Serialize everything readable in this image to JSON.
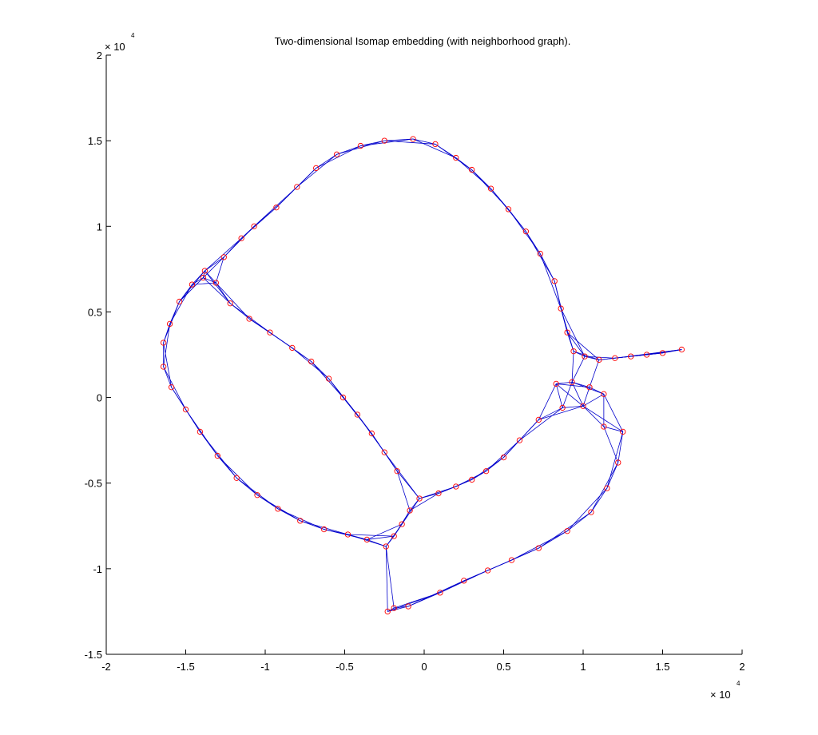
{
  "chart_data": {
    "type": "scatter",
    "title": "Two-dimensional Isomap embedding (with neighborhood graph).",
    "xlabel": "",
    "ylabel": "",
    "xlim": [
      -20000,
      20000
    ],
    "ylim": [
      -15000,
      20000
    ],
    "x_ticks": [
      -20000,
      -15000,
      -10000,
      -5000,
      0,
      5000,
      10000,
      15000,
      20000
    ],
    "x_tick_labels": [
      "-2",
      "-1.5",
      "-1",
      "-0.5",
      "0",
      "0.5",
      "1",
      "1.5",
      "2"
    ],
    "y_ticks": [
      -15000,
      -10000,
      -5000,
      0,
      5000,
      10000,
      15000,
      20000
    ],
    "y_tick_labels": [
      "-1.5",
      "-1",
      "-0.5",
      "0",
      "0.5",
      "1",
      "1.5",
      "2"
    ],
    "x_multiplier": {
      "base": "× 10",
      "exponent": "4"
    },
    "y_multiplier": {
      "base": "× 10",
      "exponent": "4"
    },
    "grid": false,
    "marker_color": "#ff0000",
    "edge_color": "#0000cc",
    "points": [
      [
        -2300,
        -12500
      ],
      [
        -1900,
        -12300
      ],
      [
        -1000,
        -12200
      ],
      [
        1000,
        -11400
      ],
      [
        2500,
        -10700
      ],
      [
        4000,
        -10100
      ],
      [
        5500,
        -9500
      ],
      [
        7200,
        -8800
      ],
      [
        9000,
        -7800
      ],
      [
        10500,
        -6700
      ],
      [
        11500,
        -5300
      ],
      [
        12200,
        -3800
      ],
      [
        12500,
        -2000
      ],
      [
        11300,
        -1700
      ],
      [
        10000,
        -500
      ],
      [
        8700,
        -600
      ],
      [
        7200,
        -1300
      ],
      [
        6000,
        -2500
      ],
      [
        5000,
        -3500
      ],
      [
        3900,
        -4300
      ],
      [
        3000,
        -4800
      ],
      [
        2000,
        -5200
      ],
      [
        900,
        -5600
      ],
      [
        -300,
        -5900
      ],
      [
        -900,
        -6600
      ],
      [
        -1400,
        -7400
      ],
      [
        -1900,
        -8100
      ],
      [
        -2400,
        -8700
      ],
      [
        -3600,
        -8300
      ],
      [
        -4800,
        -8000
      ],
      [
        -6300,
        -7700
      ],
      [
        -7800,
        -7200
      ],
      [
        -9200,
        -6500
      ],
      [
        -10500,
        -5700
      ],
      [
        -11800,
        -4700
      ],
      [
        -13000,
        -3400
      ],
      [
        -14100,
        -2000
      ],
      [
        -15000,
        -700
      ],
      [
        -15900,
        600
      ],
      [
        -16400,
        1800
      ],
      [
        -16400,
        3200
      ],
      [
        -16000,
        4300
      ],
      [
        -15400,
        5600
      ],
      [
        -14600,
        6600
      ],
      [
        -13800,
        7400
      ],
      [
        -12600,
        8200
      ],
      [
        -11500,
        9300
      ],
      [
        -10700,
        10000
      ],
      [
        -9300,
        11100
      ],
      [
        -8000,
        12300
      ],
      [
        -6800,
        13400
      ],
      [
        -5500,
        14200
      ],
      [
        -4000,
        14700
      ],
      [
        -2500,
        15000
      ],
      [
        -700,
        15100
      ],
      [
        700,
        14800
      ],
      [
        2000,
        14000
      ],
      [
        3000,
        13300
      ],
      [
        4200,
        12200
      ],
      [
        5300,
        11000
      ],
      [
        6400,
        9700
      ],
      [
        7300,
        8400
      ],
      [
        8200,
        6800
      ],
      [
        8600,
        5200
      ],
      [
        9000,
        3800
      ],
      [
        9400,
        2700
      ],
      [
        10100,
        2400
      ],
      [
        11000,
        2200
      ],
      [
        12000,
        2300
      ],
      [
        13000,
        2400
      ],
      [
        14000,
        2500
      ],
      [
        15000,
        2600
      ],
      [
        16200,
        2800
      ],
      [
        11300,
        200
      ],
      [
        10400,
        600
      ],
      [
        9300,
        900
      ],
      [
        8300,
        800
      ],
      [
        -13900,
        7000
      ],
      [
        -13100,
        6700
      ],
      [
        -12200,
        5500
      ],
      [
        -11000,
        4600
      ],
      [
        -9700,
        3800
      ],
      [
        -8300,
        2900
      ],
      [
        -7100,
        2100
      ],
      [
        -6000,
        1100
      ],
      [
        -5100,
        0
      ],
      [
        -4200,
        -1000
      ],
      [
        -3300,
        -2100
      ],
      [
        -2500,
        -3200
      ],
      [
        -1700,
        -4300
      ]
    ]
  }
}
